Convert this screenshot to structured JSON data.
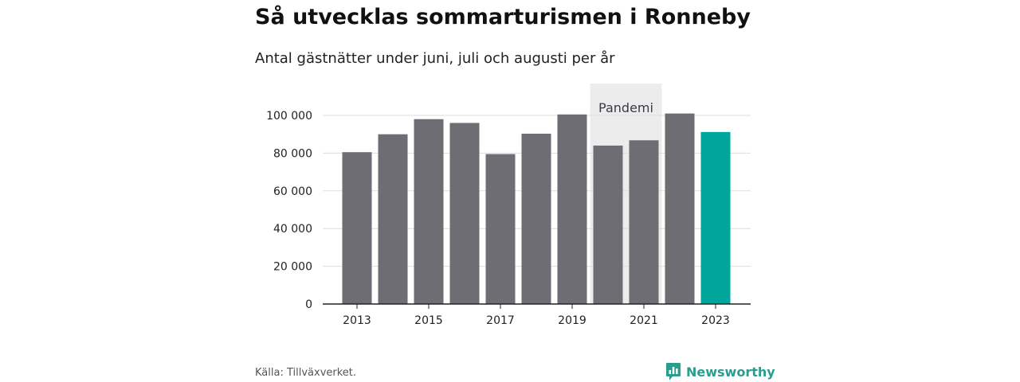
{
  "header": {
    "title": "Så utvecklas sommarturismen i Ronneby",
    "subtitle": "Antal gästnätter under juni, juli och augusti per år"
  },
  "chart_data": {
    "type": "bar",
    "title": "Så utvecklas sommarturismen i Ronneby",
    "subtitle": "Antal gästnätter under juni, juli och augusti per år",
    "xlabel": "",
    "ylabel": "",
    "categories": [
      "2013",
      "2014",
      "2015",
      "2016",
      "2017",
      "2018",
      "2019",
      "2020",
      "2021",
      "2022",
      "2023"
    ],
    "values": [
      80500,
      90000,
      98000,
      96000,
      79500,
      90300,
      100500,
      84000,
      86800,
      101000,
      91200
    ],
    "x_tick_labels": [
      "2013",
      "2015",
      "2017",
      "2019",
      "2021",
      "2023"
    ],
    "y_ticks": [
      0,
      20000,
      40000,
      60000,
      80000,
      100000
    ],
    "y_tick_labels": [
      "0",
      "20 000",
      "40 000",
      "60 000",
      "80 000",
      "100 000"
    ],
    "ylim": [
      0,
      100000
    ],
    "grid": true,
    "highlight_category": "2023",
    "annotation": {
      "label": "Pandemi",
      "from": "2020",
      "to": "2021"
    },
    "colors": {
      "bar": "#6e6d73",
      "highlight": "#00a69c",
      "annotation_band": "#ececec",
      "grid": "#dddddd",
      "axis": "#222222"
    }
  },
  "footer": {
    "source": "Källa: Tillväxverket.",
    "brand": "Newsworthy",
    "brand_icon": "newsworthy-logo-icon",
    "brand_color": "#2a9d8f"
  }
}
